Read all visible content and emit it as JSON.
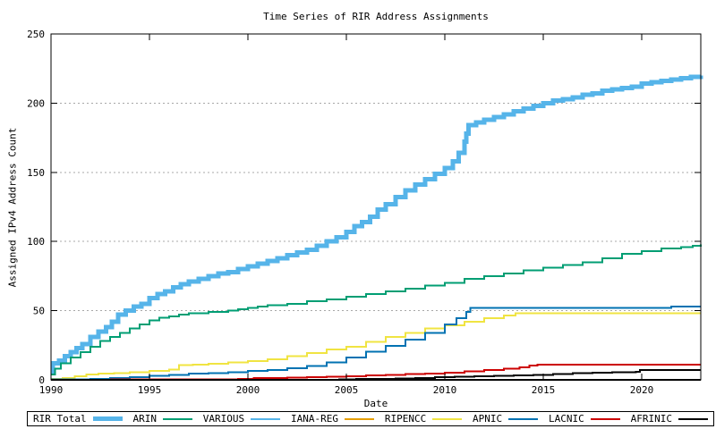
{
  "chart_data": {
    "type": "line",
    "title": "Time Series of RIR Address Assignments",
    "xlabel": "Date",
    "ylabel": "Assigned IPv4 Address Count",
    "xlim": [
      1990,
      2023
    ],
    "ylim": [
      0,
      250
    ],
    "xticks": [
      1990,
      1995,
      2000,
      2005,
      2010,
      2015,
      2020
    ],
    "yticks": [
      0,
      50,
      100,
      150,
      200,
      250
    ],
    "grid": "horizontal-dotted",
    "grid_color": "#a8a8a8",
    "axis_color": "#000000",
    "legend_position": "bottom-box",
    "interpolation": "step-after",
    "series": [
      {
        "name": "RIR Total",
        "color": "#56b4e9",
        "width": 5,
        "points": [
          [
            1990,
            5
          ],
          [
            1990.1,
            12
          ],
          [
            1990.4,
            14
          ],
          [
            1990.7,
            17
          ],
          [
            1991,
            20
          ],
          [
            1991.3,
            23
          ],
          [
            1991.6,
            26
          ],
          [
            1992,
            31
          ],
          [
            1992.4,
            35
          ],
          [
            1992.8,
            38
          ],
          [
            1993.1,
            42
          ],
          [
            1993.4,
            47
          ],
          [
            1993.8,
            50
          ],
          [
            1994.2,
            53
          ],
          [
            1994.6,
            55
          ],
          [
            1995,
            59
          ],
          [
            1995.4,
            62
          ],
          [
            1995.8,
            64
          ],
          [
            1996.2,
            67
          ],
          [
            1996.6,
            69
          ],
          [
            1997,
            71
          ],
          [
            1997.5,
            73
          ],
          [
            1998,
            75
          ],
          [
            1998.5,
            77
          ],
          [
            1999,
            78
          ],
          [
            1999.5,
            80
          ],
          [
            2000,
            82
          ],
          [
            2000.5,
            84
          ],
          [
            2001,
            86
          ],
          [
            2001.5,
            88
          ],
          [
            2002,
            90
          ],
          [
            2002.5,
            92
          ],
          [
            2003,
            94
          ],
          [
            2003.5,
            97
          ],
          [
            2004,
            100
          ],
          [
            2004.5,
            103
          ],
          [
            2005,
            107
          ],
          [
            2005.4,
            111
          ],
          [
            2005.8,
            114
          ],
          [
            2006.2,
            118
          ],
          [
            2006.6,
            123
          ],
          [
            2007,
            127
          ],
          [
            2007.5,
            132
          ],
          [
            2008,
            137
          ],
          [
            2008.5,
            141
          ],
          [
            2009,
            145
          ],
          [
            2009.5,
            149
          ],
          [
            2010,
            153
          ],
          [
            2010.4,
            158
          ],
          [
            2010.7,
            164
          ],
          [
            2011,
            172
          ],
          [
            2011.1,
            178
          ],
          [
            2011.2,
            184
          ],
          [
            2011.6,
            186
          ],
          [
            2012,
            188
          ],
          [
            2012.5,
            190
          ],
          [
            2013,
            192
          ],
          [
            2013.5,
            194
          ],
          [
            2014,
            196
          ],
          [
            2014.5,
            198
          ],
          [
            2015,
            200
          ],
          [
            2015.5,
            202
          ],
          [
            2016,
            203
          ],
          [
            2016.5,
            204
          ],
          [
            2017,
            206
          ],
          [
            2017.5,
            207
          ],
          [
            2018,
            209
          ],
          [
            2018.5,
            210
          ],
          [
            2019,
            211
          ],
          [
            2019.5,
            212
          ],
          [
            2020,
            214
          ],
          [
            2020.5,
            215
          ],
          [
            2021,
            216
          ],
          [
            2021.5,
            217
          ],
          [
            2022,
            218
          ],
          [
            2022.5,
            219
          ],
          [
            2023,
            220
          ]
        ]
      },
      {
        "name": "ARIN",
        "color": "#009e73",
        "width": 2,
        "points": [
          [
            1990,
            4
          ],
          [
            1990.2,
            8
          ],
          [
            1990.5,
            12
          ],
          [
            1991,
            16
          ],
          [
            1991.5,
            20
          ],
          [
            1992,
            24
          ],
          [
            1992.5,
            28
          ],
          [
            1993,
            31
          ],
          [
            1993.5,
            34
          ],
          [
            1994,
            37
          ],
          [
            1994.5,
            40
          ],
          [
            1995,
            43
          ],
          [
            1995.5,
            45
          ],
          [
            1996,
            46
          ],
          [
            1996.5,
            47
          ],
          [
            1997,
            48
          ],
          [
            1998,
            49
          ],
          [
            1999,
            50
          ],
          [
            1999.5,
            51
          ],
          [
            2000,
            52
          ],
          [
            2000.5,
            53
          ],
          [
            2001,
            54
          ],
          [
            2002,
            55
          ],
          [
            2003,
            57
          ],
          [
            2004,
            58
          ],
          [
            2005,
            60
          ],
          [
            2006,
            62
          ],
          [
            2007,
            64
          ],
          [
            2008,
            66
          ],
          [
            2009,
            68
          ],
          [
            2010,
            70
          ],
          [
            2011,
            73
          ],
          [
            2012,
            75
          ],
          [
            2013,
            77
          ],
          [
            2014,
            79
          ],
          [
            2015,
            81
          ],
          [
            2016,
            83
          ],
          [
            2017,
            85
          ],
          [
            2018,
            88
          ],
          [
            2019,
            91
          ],
          [
            2020,
            93
          ],
          [
            2021,
            95
          ],
          [
            2022,
            96
          ],
          [
            2022.6,
            97
          ],
          [
            2023,
            98
          ]
        ]
      },
      {
        "name": "VARIOUS",
        "color": "#56b4e9",
        "width": 2,
        "points": [
          [
            1990,
            0
          ],
          [
            2023,
            0
          ]
        ]
      },
      {
        "name": "IANA-REG",
        "color": "#e69f00",
        "width": 2,
        "points": [
          [
            1990,
            0
          ],
          [
            2023,
            0
          ]
        ]
      },
      {
        "name": "RIPENCC",
        "color": "#f0e442",
        "width": 2,
        "points": [
          [
            1990,
            0.5
          ],
          [
            1990.6,
            1.2
          ],
          [
            1991.2,
            2.5
          ],
          [
            1991.8,
            3.8
          ],
          [
            1992.4,
            4.5
          ],
          [
            1993.2,
            5
          ],
          [
            1994,
            5.5
          ],
          [
            1995,
            6.5
          ],
          [
            1996,
            7.5
          ],
          [
            1996.5,
            10.5
          ],
          [
            1997.2,
            11
          ],
          [
            1998,
            11.5
          ],
          [
            1999,
            12.5
          ],
          [
            2000,
            13.5
          ],
          [
            2001,
            15
          ],
          [
            2002,
            17
          ],
          [
            2003,
            19.5
          ],
          [
            2004,
            22
          ],
          [
            2005,
            24
          ],
          [
            2006,
            27.5
          ],
          [
            2007,
            31
          ],
          [
            2008,
            34
          ],
          [
            2009,
            37
          ],
          [
            2010,
            39.5
          ],
          [
            2011,
            42
          ],
          [
            2012,
            44.5
          ],
          [
            2013,
            46.5
          ],
          [
            2013.6,
            48
          ],
          [
            2023,
            48
          ]
        ]
      },
      {
        "name": "APNIC",
        "color": "#0072b2",
        "width": 2,
        "points": [
          [
            1990,
            0.2
          ],
          [
            1992,
            0.6
          ],
          [
            1993,
            1.2
          ],
          [
            1994,
            2
          ],
          [
            1995,
            3
          ],
          [
            1996,
            3.6
          ],
          [
            1997,
            4.4
          ],
          [
            1998,
            5
          ],
          [
            1999,
            5.6
          ],
          [
            2000,
            6.4
          ],
          [
            2001,
            7
          ],
          [
            2002,
            8.5
          ],
          [
            2003,
            10
          ],
          [
            2004,
            12.5
          ],
          [
            2005,
            16
          ],
          [
            2006,
            20.5
          ],
          [
            2007,
            24.5
          ],
          [
            2008,
            29
          ],
          [
            2009,
            34
          ],
          [
            2010,
            40
          ],
          [
            2010.6,
            44.5
          ],
          [
            2011.1,
            49
          ],
          [
            2011.3,
            52
          ],
          [
            2021.4,
            52
          ],
          [
            2021.5,
            53
          ],
          [
            2023,
            53
          ]
        ]
      },
      {
        "name": "LACNIC",
        "color": "#cc0000",
        "width": 2,
        "points": [
          [
            1993,
            0.4
          ],
          [
            1999.5,
            0.6
          ],
          [
            2000.3,
            1.2
          ],
          [
            2001,
            1.4
          ],
          [
            2002,
            1.7
          ],
          [
            2003,
            2
          ],
          [
            2004,
            2.3
          ],
          [
            2005,
            2.7
          ],
          [
            2006,
            3.1
          ],
          [
            2007,
            3.6
          ],
          [
            2008,
            4.1
          ],
          [
            2009,
            4.6
          ],
          [
            2010,
            5.2
          ],
          [
            2011,
            6
          ],
          [
            2012,
            7
          ],
          [
            2013,
            8
          ],
          [
            2013.8,
            9
          ],
          [
            2014.3,
            10.3
          ],
          [
            2014.7,
            11
          ],
          [
            2023,
            11
          ]
        ]
      },
      {
        "name": "AFRINIC",
        "color": "#000000",
        "width": 2,
        "points": [
          [
            2004.6,
            0.3
          ],
          [
            2005.5,
            0.5
          ],
          [
            2006.5,
            0.8
          ],
          [
            2007.5,
            1.1
          ],
          [
            2008.5,
            1.4
          ],
          [
            2009.5,
            1.8
          ],
          [
            2010.5,
            2.2
          ],
          [
            2011.5,
            2.5
          ],
          [
            2012.5,
            2.8
          ],
          [
            2013.5,
            3.2
          ],
          [
            2014.5,
            3.7
          ],
          [
            2015.5,
            4.2
          ],
          [
            2016.5,
            4.7
          ],
          [
            2017.5,
            5.1
          ],
          [
            2018.5,
            5.5
          ],
          [
            2019.7,
            5.8
          ],
          [
            2019.9,
            7
          ],
          [
            2023,
            7
          ]
        ]
      }
    ]
  }
}
